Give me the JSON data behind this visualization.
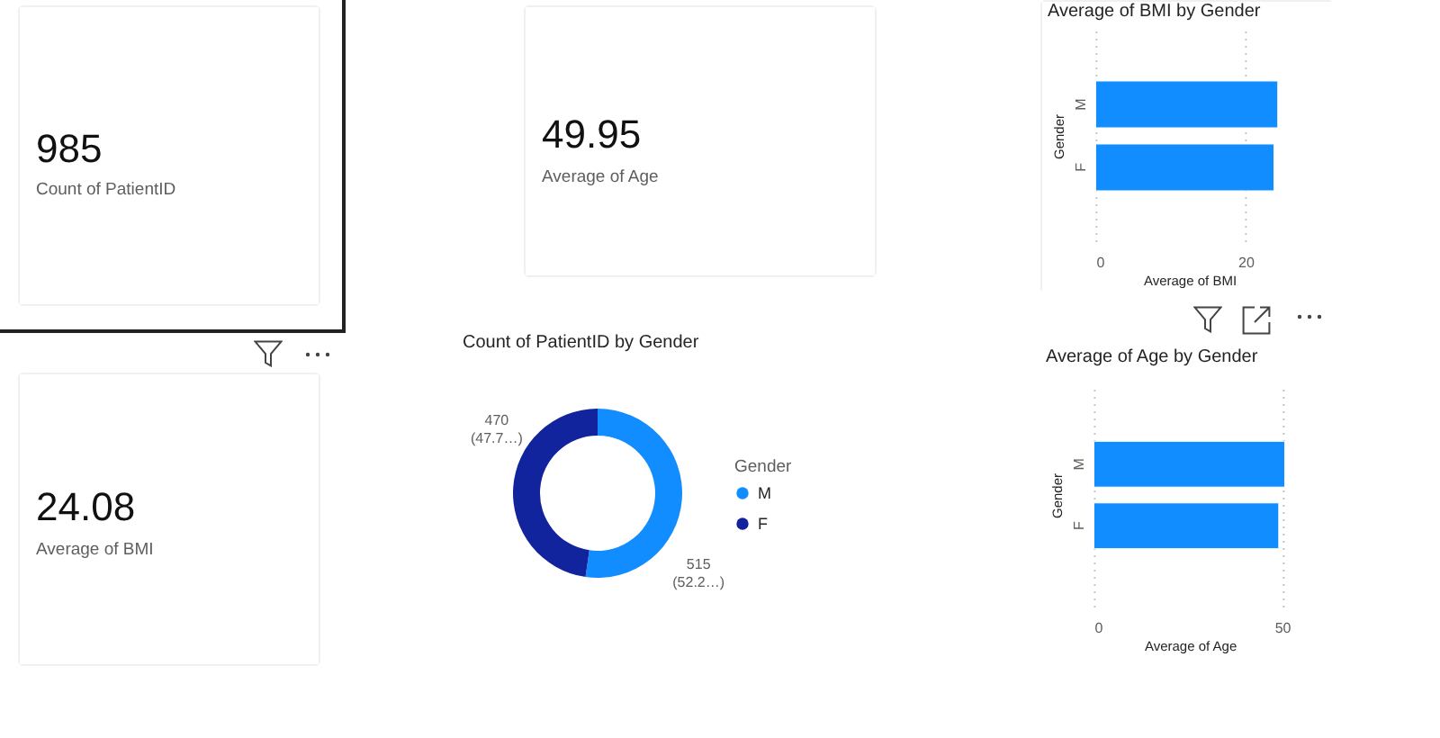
{
  "chart_data": [
    {
      "type": "other",
      "categories": [
        "Count of PatientID"
      ],
      "values": [
        985
      ],
      "data_labels": true
    },
    {
      "type": "other",
      "categories": [
        "Average of Age"
      ],
      "values": [
        49.95
      ],
      "data_labels": true
    },
    {
      "type": "bar",
      "title": "Average of BMI by Gender",
      "orientation": "horizontal",
      "categories": [
        "M",
        "F"
      ],
      "values": [
        24.3,
        23.8
      ],
      "color": "#118dff",
      "xlabel": "Average of BMI",
      "ylabel": "Gender",
      "xlim": [
        0,
        25
      ],
      "xticks": [
        0,
        20
      ],
      "grid": "x"
    },
    {
      "type": "other",
      "categories": [
        "Average of BMI"
      ],
      "values": [
        24.08
      ],
      "data_labels": true
    },
    {
      "type": "donut",
      "title": "Count of PatientID by Gender",
      "categories": [
        "M",
        "F"
      ],
      "values": [
        515,
        470
      ],
      "colors": [
        "#118dff",
        "#12239e"
      ],
      "value_labels": [
        "515\n(52.2…)",
        "470\n(47.7…)"
      ],
      "legend_title": "Gender",
      "legend": "right"
    },
    {
      "type": "bar",
      "title": "Average of Age by Gender",
      "orientation": "horizontal",
      "categories": [
        "M",
        "F"
      ],
      "values": [
        50.7,
        49.1
      ],
      "color": "#118dff",
      "xlabel": "Average of Age",
      "ylabel": "Gender",
      "xlim": [
        0,
        51
      ],
      "xticks": [
        0,
        50
      ],
      "grid": "x"
    }
  ]
}
